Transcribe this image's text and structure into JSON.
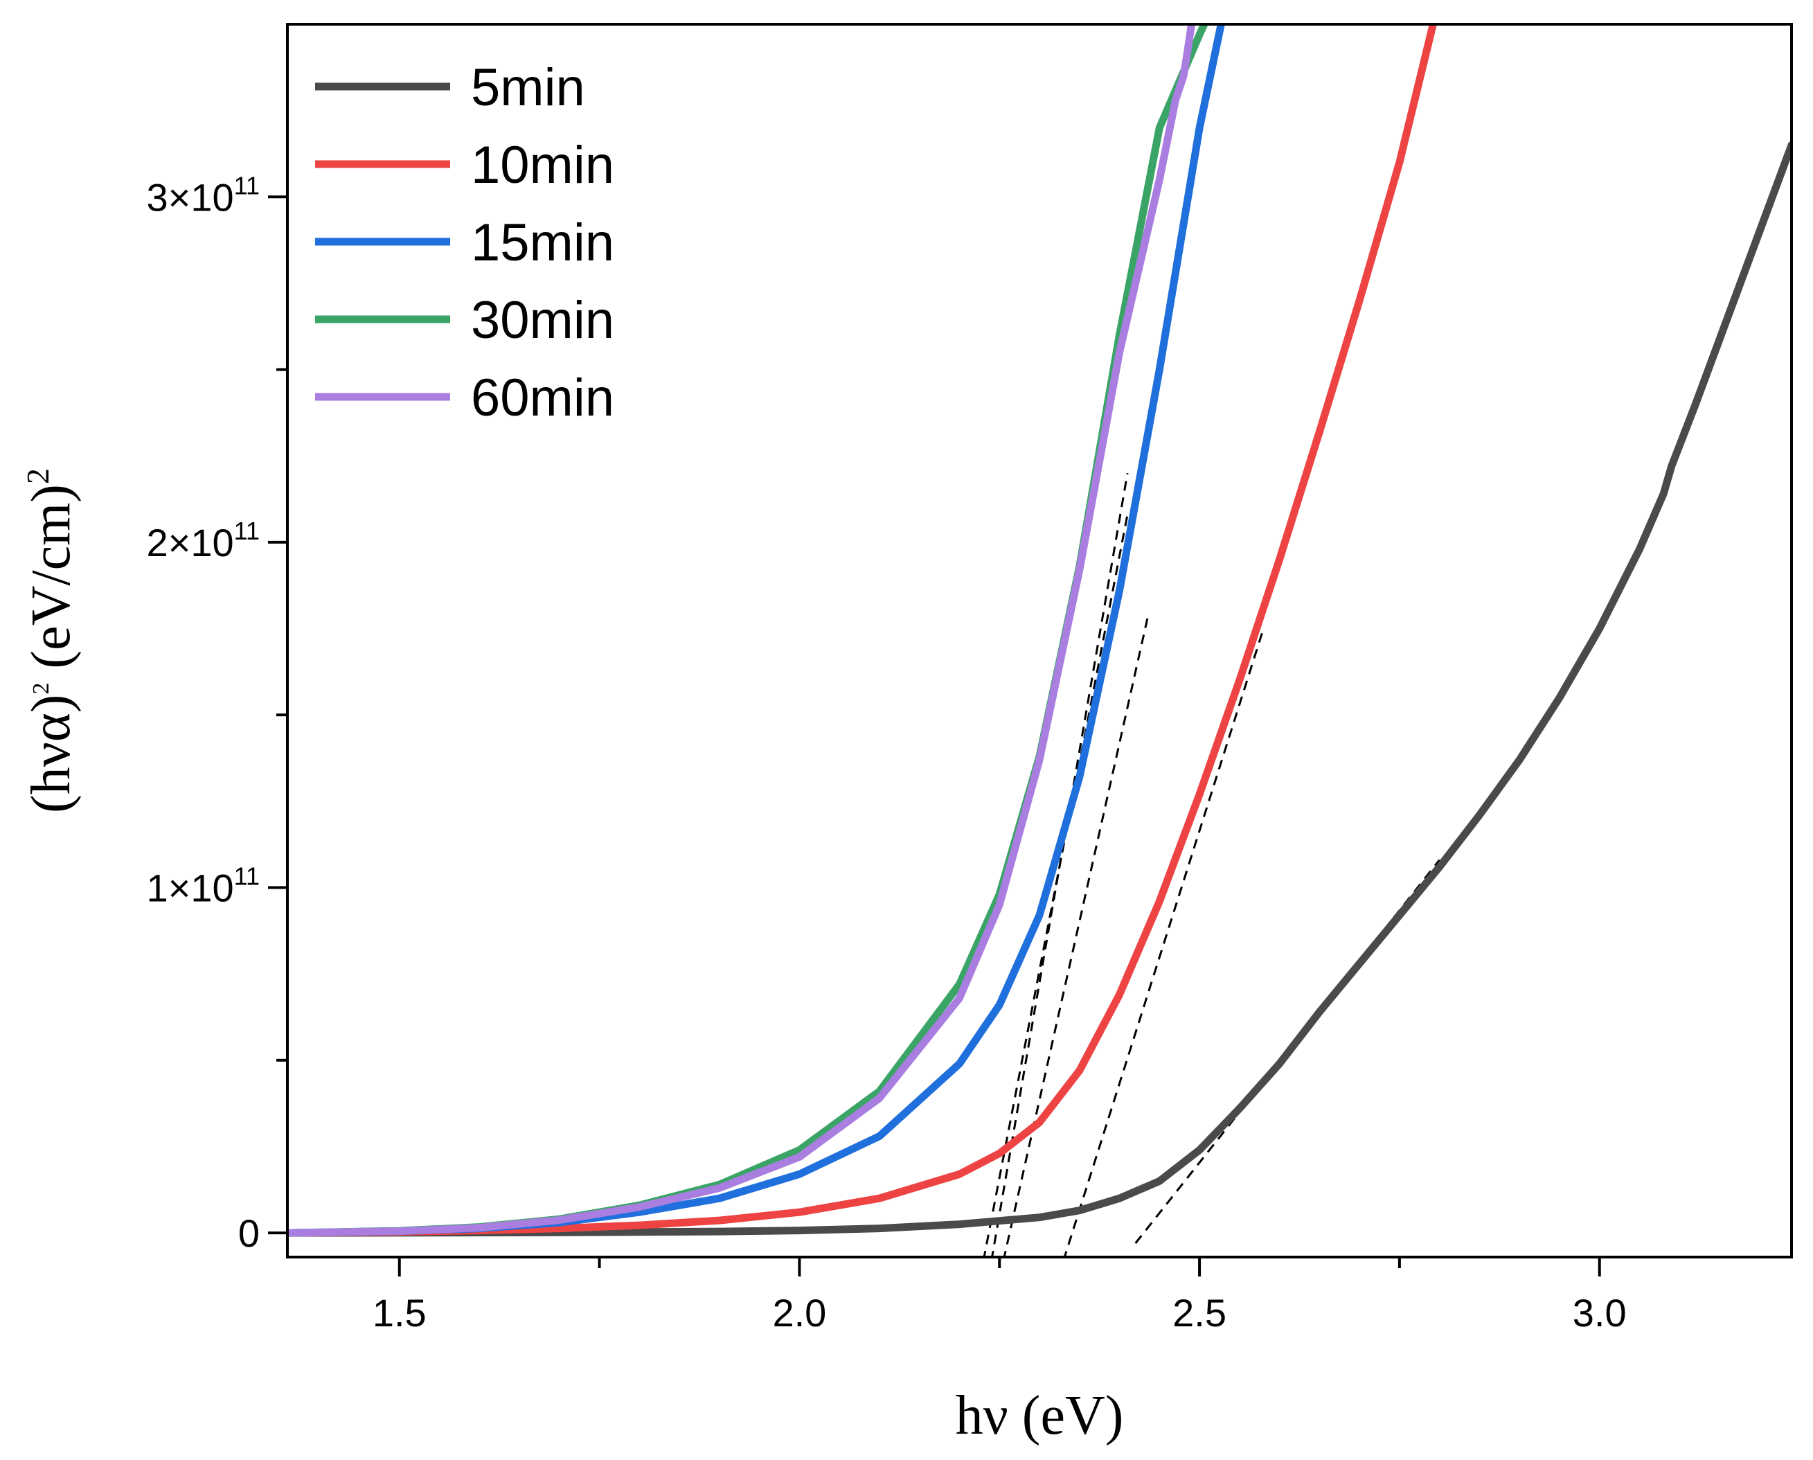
{
  "chart_data": {
    "type": "line",
    "title": "",
    "xlabel": "hν (eV)",
    "ylabel_parts": {
      "base": "(hνα)",
      "exp": "2",
      "unit": " (eV/cm)",
      "unit_exp": "2"
    },
    "xlim": [
      1.36,
      3.24
    ],
    "ylim": [
      -7000000000.0,
      350000000000.0
    ],
    "x_ticks": [
      {
        "value": 1.5,
        "label": "1.5"
      },
      {
        "value": 2.0,
        "label": "2.0"
      },
      {
        "value": 2.5,
        "label": "2.5"
      },
      {
        "value": 3.0,
        "label": "3.0"
      }
    ],
    "x_minor_ticks": [
      1.75,
      2.25,
      2.75
    ],
    "y_ticks": [
      {
        "value": 0,
        "label": "0",
        "exp": ""
      },
      {
        "value": 100000000000.0,
        "label": "1×10",
        "exp": "11"
      },
      {
        "value": 200000000000.0,
        "label": "2×10",
        "exp": "11"
      },
      {
        "value": 300000000000.0,
        "label": "3×10",
        "exp": "11"
      }
    ],
    "y_minor_ticks": [
      50000000000.0,
      150000000000.0,
      250000000000.0
    ],
    "legend_position": "top-left",
    "series": [
      {
        "name": "5min",
        "color": "#4a4a4a",
        "x": [
          1.36,
          1.5,
          1.7,
          1.9,
          2.0,
          2.1,
          2.2,
          2.3,
          2.35,
          2.4,
          2.45,
          2.5,
          2.55,
          2.6,
          2.65,
          2.7,
          2.75,
          2.8,
          2.85,
          2.9,
          2.95,
          3.0,
          3.05,
          3.08,
          3.09,
          3.12,
          3.16,
          3.2,
          3.24
        ],
        "y": [
          0,
          30000000.0,
          150000000.0,
          400000000.0,
          700000000.0,
          1300000000.0,
          2500000000.0,
          4500000000.0,
          6500000000.0,
          10000000000.0,
          15000000000.0,
          24000000000.0,
          36000000000.0,
          49000000000.0,
          64000000000.0,
          78000000000.0,
          92000000000.0,
          106000000000.0,
          121000000000.0,
          137000000000.0,
          155000000000.0,
          175000000000.0,
          198000000000.0,
          214000000000.0,
          222000000000.0,
          240000000000.0,
          265000000000.0,
          290000000000.0,
          315000000000.0
        ]
      },
      {
        "name": "10min",
        "color": "#ee4343",
        "x": [
          1.36,
          1.5,
          1.6,
          1.7,
          1.8,
          1.9,
          2.0,
          2.1,
          2.2,
          2.25,
          2.3,
          2.35,
          2.4,
          2.45,
          2.5,
          2.55,
          2.6,
          2.65,
          2.7,
          2.75,
          2.792
        ],
        "y": [
          0,
          300000000.0,
          700000000.0,
          1300000000.0,
          2200000000.0,
          3600000000.0,
          6000000000.0,
          10000000000.0,
          17000000000.0,
          23000000000.0,
          32000000000.0,
          47000000000.0,
          69000000000.0,
          96000000000.0,
          127000000000.0,
          160000000000.0,
          195000000000.0,
          232000000000.0,
          270000000000.0,
          310000000000.0,
          350000000000.0
        ]
      },
      {
        "name": "15min",
        "color": "#1f6fdc",
        "x": [
          1.36,
          1.5,
          1.6,
          1.7,
          1.8,
          1.9,
          2.0,
          2.1,
          2.2,
          2.25,
          2.3,
          2.35,
          2.4,
          2.45,
          2.5,
          2.527
        ],
        "y": [
          0,
          500000000.0,
          1300000000.0,
          3000000000.0,
          6000000000.0,
          10000000000.0,
          17000000000.0,
          28000000000.0,
          49000000000.0,
          66000000000.0,
          92000000000.0,
          132000000000.0,
          186000000000.0,
          250000000000.0,
          320000000000.0,
          350000000000.0
        ]
      },
      {
        "name": "30min",
        "color": "#3aa466",
        "x": [
          1.36,
          1.5,
          1.6,
          1.7,
          1.8,
          1.9,
          2.0,
          2.1,
          2.2,
          2.25,
          2.3,
          2.35,
          2.4,
          2.45,
          2.5,
          2.506
        ],
        "y": [
          0,
          600000000.0,
          1700000000.0,
          4000000000.0,
          8000000000.0,
          14000000000.0,
          24000000000.0,
          41000000000.0,
          72000000000.0,
          98000000000.0,
          138000000000.0,
          193000000000.0,
          260000000000.0,
          320000000000.0,
          347000000000.0,
          350000000000.0
        ]
      },
      {
        "name": "60min",
        "color": "#a97ee0",
        "x": [
          1.36,
          1.5,
          1.6,
          1.7,
          1.8,
          1.9,
          2.0,
          2.1,
          2.2,
          2.25,
          2.3,
          2.35,
          2.4,
          2.45,
          2.47,
          2.48,
          2.485,
          2.49
        ],
        "y": [
          0,
          500000000.0,
          1500000000.0,
          3700000000.0,
          7500000000.0,
          13000000000.0,
          22000000000.0,
          39000000000.0,
          68000000000.0,
          95000000000.0,
          137000000000.0,
          192000000000.0,
          255000000000.0,
          305000000000.0,
          328000000000.0,
          335000000000.0,
          342000000000.0,
          350000000000.0
        ]
      }
    ],
    "fit_lines": [
      {
        "series": "5min",
        "x": [
          2.42,
          2.8
        ],
        "y": [
          -3000000000.0,
          108000000000.0
        ]
      },
      {
        "series": "10min",
        "x": [
          2.33,
          2.58
        ],
        "y": [
          -8000000000.0,
          175000000000.0
        ]
      },
      {
        "series": "15min",
        "x": [
          2.255,
          2.435
        ],
        "y": [
          -8000000000.0,
          178000000000.0
        ]
      },
      {
        "series": "30min",
        "x": [
          2.24,
          2.41
        ],
        "y": [
          -8000000000.0,
          220000000000.0
        ]
      },
      {
        "series": "60min",
        "x": [
          2.23,
          2.41
        ],
        "y": [
          -8000000000.0,
          208000000000.0
        ]
      }
    ]
  }
}
